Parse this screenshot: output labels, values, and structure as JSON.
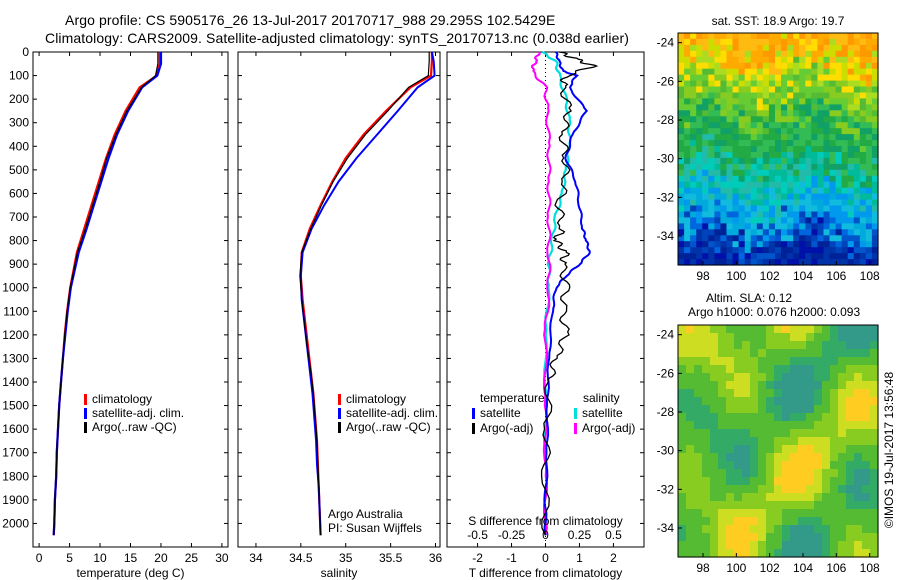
{
  "header": {
    "line1": "Argo profile: CS 5905176_26 13-Jul-2017 20170717_988 29.295S 102.5429E",
    "line2": "Climatology: CARS2009. Satellite-adjusted climatology: synTS_20170713.nc (0.038d earlier)"
  },
  "footer": {
    "credit": "Argo Australia",
    "pi": "PI: Susan Wijffels",
    "stamp": "©IMOS 19-Jul-2017 13:56:48"
  },
  "colors": {
    "climatology": "#ff0000",
    "satellite": "#0000ff",
    "argo": "#000000",
    "satellite_salinity": "#00dddd",
    "argo_salinity": "#ff00ff"
  },
  "chart_data": [
    {
      "type": "line",
      "panel": "temperature",
      "xlabel": "temperature (deg C)",
      "ylabel": "",
      "xlim": [
        -1,
        31
      ],
      "ylim": [
        2100,
        0
      ],
      "xticks": [
        0,
        5,
        10,
        15,
        20,
        25,
        30
      ],
      "yticks": [
        0,
        100,
        200,
        300,
        400,
        500,
        600,
        700,
        800,
        900,
        1000,
        1100,
        1200,
        1300,
        1400,
        1500,
        1600,
        1700,
        1800,
        1900,
        2000
      ],
      "legend": [
        "climatology",
        "satellite-adj. clim.",
        "Argo(..raw -QC)"
      ],
      "legend_position": "lower-middle",
      "series": [
        {
          "name": "climatology",
          "x": [
            19.8,
            19.8,
            19.3,
            16.5,
            14.2,
            12.4,
            11.0,
            9.8,
            8.6,
            7.4,
            6.2,
            5.1,
            4.6,
            4.2,
            3.9,
            3.6,
            3.3,
            3.1,
            2.9,
            2.8,
            2.6,
            2.5,
            2.4
          ],
          "y": [
            0,
            50,
            100,
            150,
            250,
            350,
            450,
            550,
            650,
            750,
            850,
            1000,
            1100,
            1200,
            1300,
            1400,
            1500,
            1600,
            1700,
            1800,
            1900,
            2000,
            2050
          ]
        },
        {
          "name": "satellite-adj. clim.",
          "x": [
            20.0,
            20.0,
            19.4,
            16.9,
            14.6,
            12.8,
            11.4,
            10.2,
            9.0,
            7.8,
            6.5,
            5.2,
            4.7,
            4.3,
            3.9,
            3.6,
            3.3,
            3.1,
            2.9,
            2.8,
            2.6,
            2.5,
            2.4
          ],
          "y": [
            0,
            50,
            100,
            150,
            250,
            350,
            450,
            550,
            650,
            750,
            850,
            1000,
            1100,
            1200,
            1300,
            1400,
            1500,
            1600,
            1700,
            1800,
            1900,
            2000,
            2050
          ]
        },
        {
          "name": "Argo(..raw -QC)",
          "x": [
            19.5,
            19.5,
            19.1,
            16.8,
            14.4,
            12.6,
            11.1,
            10.0,
            8.8,
            7.6,
            6.3,
            5.1,
            4.6,
            4.2,
            3.9,
            3.6,
            3.3,
            3.1,
            2.9,
            2.8,
            2.6,
            2.5,
            2.4
          ],
          "y": [
            0,
            50,
            100,
            150,
            250,
            350,
            450,
            550,
            650,
            750,
            850,
            1000,
            1100,
            1200,
            1300,
            1400,
            1500,
            1600,
            1700,
            1800,
            1900,
            2000,
            2050
          ]
        }
      ]
    },
    {
      "type": "line",
      "panel": "salinity",
      "xlabel": "salinity",
      "xlim": [
        33.8,
        36.05
      ],
      "ylim": [
        2100,
        0
      ],
      "xticks": [
        34,
        34.5,
        35,
        35.5,
        36
      ],
      "xticklabels": [
        "34",
        "34.5",
        "35",
        "35.5",
        "36"
      ],
      "legend": [
        "climatology",
        "satellite-adj. clim.",
        "Argo(..raw -QC)"
      ],
      "legend_position": "lower-right",
      "series": [
        {
          "name": "climatology",
          "x": [
            35.96,
            35.96,
            35.95,
            35.72,
            35.45,
            35.2,
            35.0,
            34.85,
            34.72,
            34.6,
            34.51,
            34.5,
            34.52,
            34.55,
            34.58,
            34.61,
            34.64,
            34.66,
            34.68,
            34.69,
            34.7,
            34.71,
            34.72
          ],
          "y": [
            0,
            40,
            100,
            150,
            250,
            350,
            450,
            550,
            650,
            750,
            850,
            950,
            1050,
            1150,
            1250,
            1350,
            1450,
            1550,
            1650,
            1750,
            1850,
            1950,
            2050
          ]
        },
        {
          "name": "satellite-adj. clim.",
          "x": [
            35.96,
            35.98,
            35.99,
            35.8,
            35.58,
            35.35,
            35.12,
            34.92,
            34.76,
            34.62,
            34.52,
            34.5,
            34.51,
            34.54,
            34.57,
            34.6,
            34.63,
            34.65,
            34.67,
            34.68,
            34.7,
            34.71,
            34.72
          ],
          "y": [
            0,
            40,
            100,
            150,
            250,
            350,
            450,
            550,
            650,
            750,
            850,
            950,
            1050,
            1150,
            1250,
            1350,
            1450,
            1550,
            1650,
            1750,
            1850,
            1950,
            2050
          ]
        },
        {
          "name": "Argo(..raw -QC)",
          "x": [
            35.93,
            35.93,
            35.92,
            35.7,
            35.47,
            35.22,
            35.02,
            34.86,
            34.73,
            34.61,
            34.51,
            34.49,
            34.51,
            34.54,
            34.57,
            34.61,
            34.64,
            34.66,
            34.68,
            34.69,
            34.7,
            34.71,
            34.72
          ],
          "y": [
            0,
            40,
            100,
            150,
            250,
            350,
            450,
            550,
            650,
            750,
            850,
            950,
            1050,
            1150,
            1250,
            1350,
            1450,
            1550,
            1650,
            1750,
            1850,
            1950,
            2050
          ]
        }
      ]
    },
    {
      "type": "line",
      "panel": "difference",
      "xlabel": "T difference from climatology",
      "xlabel_top": "S difference from climatology",
      "xlim": [
        -2.9,
        2.9
      ],
      "xticks": [
        -2,
        -1,
        0,
        1,
        2
      ],
      "xticks_top": [
        -0.5,
        -0.25,
        0,
        0.25,
        0.5
      ],
      "ylim": [
        2100,
        0
      ],
      "legend": {
        "temperature": [
          "satellite",
          "Argo(-adj)"
        ],
        "salinity": [
          "satellite",
          "Argo(-adj)"
        ]
      },
      "legend_headers": [
        "temperature",
        "salinity"
      ],
      "legend_position": "middle",
      "series": [
        {
          "name": "temperature satellite",
          "x": [
            0.3,
            0.4,
            0.5,
            0.9,
            0.7,
            1.2,
            0.8,
            0.6,
            0.9,
            1.0,
            1.1,
            1.2,
            1.3,
            1.0,
            0.6,
            0.3,
            0.2,
            0.1,
            0.05,
            0.05,
            0.0,
            0.0
          ],
          "y": [
            0,
            40,
            80,
            100,
            150,
            250,
            350,
            450,
            550,
            650,
            750,
            800,
            850,
            900,
            950,
            1000,
            1100,
            1300,
            1500,
            1700,
            1900,
            2050
          ]
        },
        {
          "name": "temperature Argo(-adj)",
          "x": [
            0.4,
            0.9,
            1.4,
            0.6,
            0.5,
            0.7,
            0.5,
            0.6,
            0.6,
            0.4,
            0.5,
            0.3,
            0.6,
            0.5,
            0.6,
            0.5,
            0.6,
            0.3,
            0.1,
            0.05,
            0.0,
            0.0
          ],
          "y": [
            0,
            30,
            60,
            100,
            150,
            250,
            350,
            450,
            550,
            650,
            750,
            800,
            850,
            900,
            1000,
            1100,
            1200,
            1300,
            1400,
            1600,
            1800,
            2050
          ]
        },
        {
          "name": "salinity satellite",
          "x": [
            -0.1,
            0.3,
            0.4,
            0.6,
            0.7,
            0.7,
            0.6,
            0.5,
            0.3,
            0.2,
            0.1,
            0.1,
            0.0,
            0.0,
            0.0,
            0.0
          ],
          "y": [
            0,
            40,
            100,
            200,
            300,
            400,
            500,
            600,
            700,
            800,
            900,
            1000,
            1200,
            1500,
            1800,
            2050
          ]
        },
        {
          "name": "salinity Argo(-adj)",
          "x": [
            -0.2,
            -0.3,
            -0.4,
            0.0,
            0.05,
            0.1,
            0.1,
            0.1,
            0.1,
            0.1,
            0.0,
            0.0,
            0.0,
            0.0
          ],
          "y": [
            0,
            40,
            80,
            150,
            250,
            400,
            550,
            700,
            850,
            1000,
            1200,
            1500,
            1800,
            2050
          ]
        }
      ]
    },
    {
      "type": "heatmap",
      "panel": "satellite-sst-map",
      "title": "sat. SST: 18.9  Argo: 19.7",
      "xticks": [
        98,
        100,
        102,
        104,
        106,
        108
      ],
      "yticks": [
        -24,
        -26,
        -28,
        -30,
        -32,
        -34
      ],
      "xlim": [
        96.5,
        108.5
      ],
      "ylim": [
        -35.5,
        -23.5
      ],
      "bands": [
        "orange-yellow north",
        "green mid",
        "cyan south",
        "blue far south"
      ]
    },
    {
      "type": "heatmap",
      "panel": "altimetry-sla-map",
      "title_line1": "Altim. SLA: 0.12",
      "title_line2": "Argo h1000: 0.076  h2000: 0.093",
      "xticks": [
        98,
        100,
        102,
        104,
        106,
        108
      ],
      "yticks": [
        -24,
        -26,
        -28,
        -30,
        -32,
        -34
      ],
      "xlim": [
        96.5,
        108.5
      ],
      "ylim": [
        -35.5,
        -23.5
      ]
    }
  ]
}
